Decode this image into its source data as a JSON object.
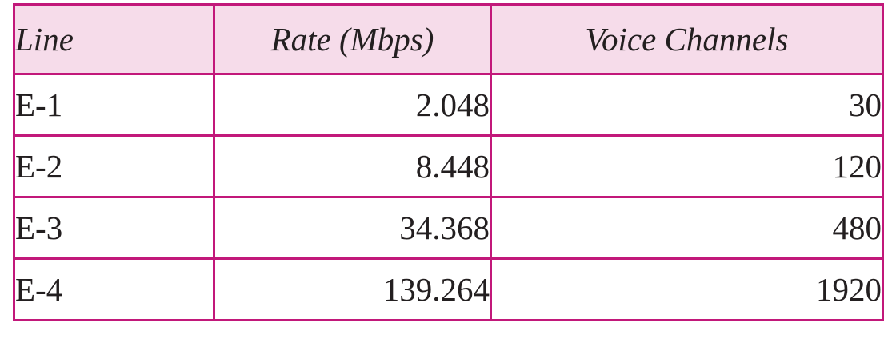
{
  "table": {
    "headers": {
      "line": "Line",
      "rate": "Rate (Mbps)",
      "voice": "Voice Channels"
    },
    "rows": [
      {
        "line": "E-1",
        "rate": "2.048",
        "voice": "30"
      },
      {
        "line": "E-2",
        "rate": "8.448",
        "voice": "120"
      },
      {
        "line": "E-3",
        "rate": "34.368",
        "voice": "480"
      },
      {
        "line": "E-4",
        "rate": "139.264",
        "voice": "1920"
      }
    ]
  },
  "colors": {
    "border": "#c2187a",
    "header_background": "#f6dcea",
    "text": "#231f20"
  }
}
